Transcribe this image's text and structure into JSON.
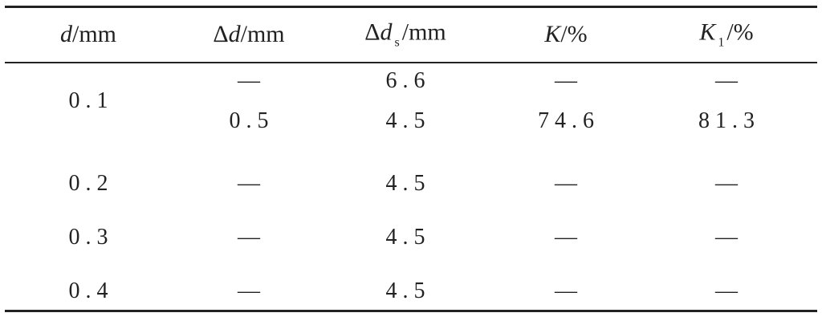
{
  "table": {
    "header": [
      [
        {
          "text": "d",
          "italic": true
        },
        {
          "text": "/mm"
        }
      ],
      [
        {
          "text": "Δ"
        },
        {
          "text": "d",
          "italic": true
        },
        {
          "text": "/mm"
        }
      ],
      [
        {
          "text": "Δ"
        },
        {
          "text": "d",
          "italic": true
        },
        {
          "text": "s",
          "sub": true
        },
        {
          "text": "/mm"
        }
      ],
      [
        {
          "text": "K",
          "italic": true
        },
        {
          "text": "/%"
        }
      ],
      [
        {
          "text": "K",
          "italic": true
        },
        {
          "text": "1",
          "sub": true
        },
        {
          "text": "/%"
        }
      ]
    ],
    "rows": [
      {
        "d": "0.1",
        "lines": [
          [
            "—",
            "6.6",
            "—",
            "—"
          ],
          [
            "0.5",
            "4.5",
            "74.6",
            "81.3"
          ]
        ]
      },
      {
        "d": "0.2",
        "lines": [
          [
            "—",
            "4.5",
            "—",
            "—"
          ]
        ]
      },
      {
        "d": "0.3",
        "lines": [
          [
            "—",
            "4.5",
            "—",
            "—"
          ]
        ]
      },
      {
        "d": "0.4",
        "lines": [
          [
            "—",
            "4.5",
            "—",
            "—"
          ]
        ]
      }
    ]
  }
}
